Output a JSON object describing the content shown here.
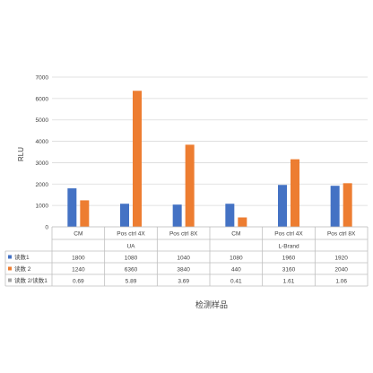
{
  "chart_data": {
    "type": "bar",
    "title": "",
    "xlabel": "检测样品",
    "ylabel": "RLU",
    "ylim": [
      0,
      7000
    ],
    "yticks": [
      0,
      1000,
      2000,
      3000,
      4000,
      5000,
      6000,
      7000
    ],
    "grid": true,
    "legend": "data-table",
    "groups": [
      {
        "label": "UA",
        "categories": [
          "CM",
          "Pos ctrl 4X",
          "Pos ctrl 8X"
        ]
      },
      {
        "label": "L-Brand",
        "categories": [
          "CM",
          "Pos ctrl 4X",
          "Pos ctrl 8X"
        ]
      }
    ],
    "categories": [
      "CM",
      "Pos ctrl 4X",
      "Pos ctrl 8X",
      "CM",
      "Pos ctrl 4X",
      "Pos ctrl 8X"
    ],
    "series": [
      {
        "name": "读数1",
        "color": "#4472C4",
        "plotted": true,
        "values": [
          1800,
          1080,
          1040,
          1080,
          1960,
          1920
        ],
        "labels": [
          "1800",
          "1080",
          "1040",
          "1080",
          "1960",
          "1920"
        ]
      },
      {
        "name": "读数 2",
        "color": "#ED7D31",
        "plotted": true,
        "values": [
          1240,
          6360,
          3840,
          440,
          3160,
          2040
        ],
        "labels": [
          "1240",
          "6360",
          "3840",
          "440",
          "3160",
          "2040"
        ]
      },
      {
        "name": "读数 2/读数1",
        "color": "#A5A5A5",
        "plotted": false,
        "values": [
          0.69,
          5.89,
          3.69,
          0.41,
          1.61,
          1.06
        ],
        "labels": [
          "0.69",
          "5.89",
          "3.69",
          "0.41",
          "1.61",
          "1.06"
        ]
      }
    ]
  }
}
